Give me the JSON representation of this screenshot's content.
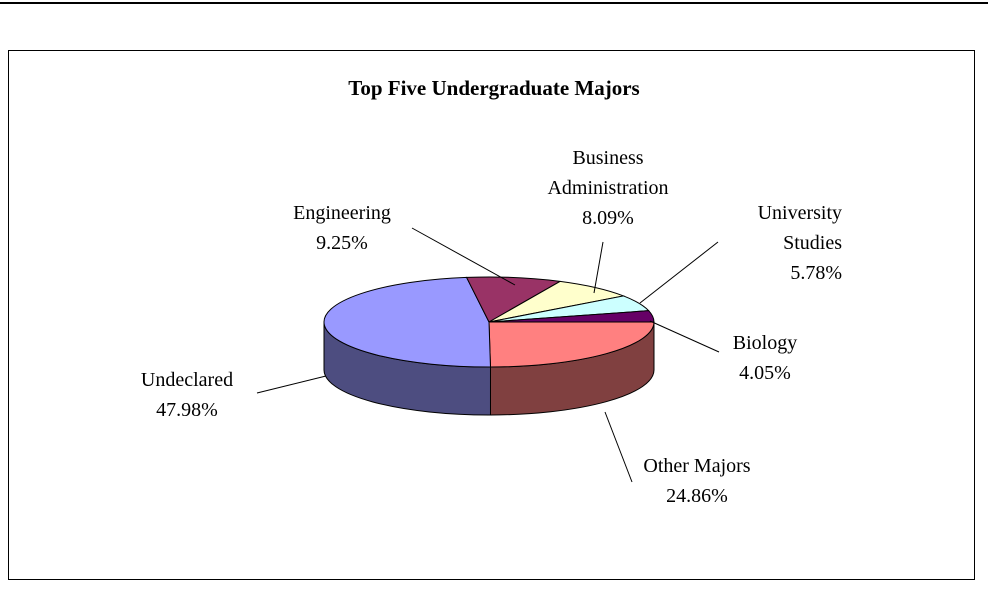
{
  "chart_data": {
    "type": "pie3d",
    "title": "Top Five Undergraduate Majors",
    "categories": [
      "Other Majors",
      "Undeclared",
      "Engineering",
      "Business Administration",
      "University Studies",
      "Biology"
    ],
    "values": [
      24.86,
      47.98,
      9.25,
      8.09,
      5.78,
      4.05
    ],
    "value_labels": [
      "24.86%",
      "47.98%",
      "9.25%",
      "8.09%",
      "5.78%",
      "4.05%"
    ],
    "colors": [
      "#ff8080",
      "#9999ff",
      "#993366",
      "#ffffcc",
      "#ccffff",
      "#660066"
    ]
  }
}
